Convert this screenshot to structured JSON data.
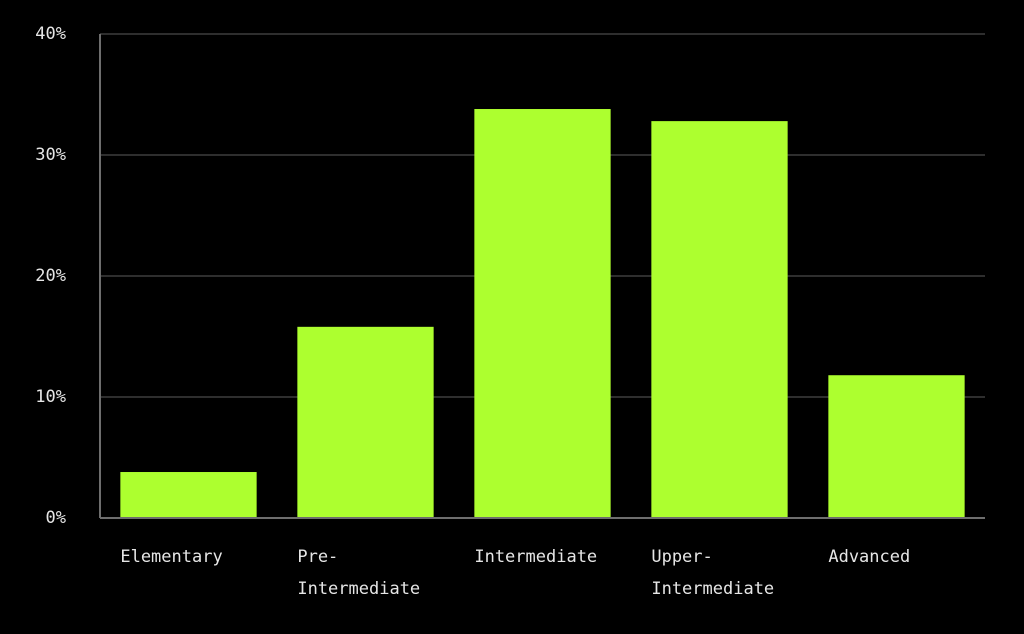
{
  "chart_data": {
    "type": "bar",
    "title": "",
    "xlabel": "",
    "ylabel": "",
    "categories": [
      [
        "Elementary"
      ],
      [
        "Pre-",
        "Intermediate"
      ],
      [
        "Intermediate"
      ],
      [
        "Upper-",
        "Intermediate"
      ],
      [
        "Advanced"
      ]
    ],
    "values": [
      3.8,
      15.8,
      33.8,
      32.8,
      11.8
    ],
    "ylim": [
      0,
      40
    ],
    "yticks": [
      0,
      10,
      20,
      30,
      40
    ],
    "ytick_labels": [
      "0%",
      "10%",
      "20%",
      "30%",
      "40%"
    ],
    "grid": true,
    "legend": "none",
    "colors": {
      "background": "#000000",
      "bar": "#adff2f",
      "grid": "#4a4a4a",
      "axis": "#6e6e6e",
      "text": "#e6e6e6"
    }
  }
}
